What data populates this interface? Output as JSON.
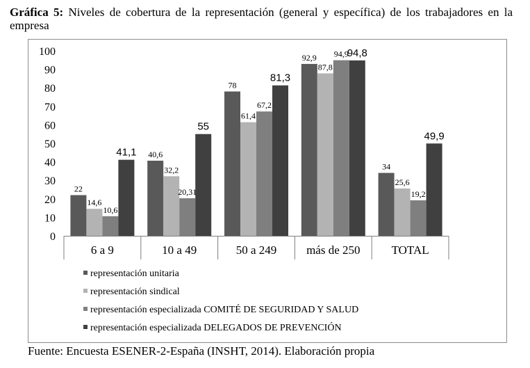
{
  "caption": {
    "label": "Gráfica 5:",
    "text": "Niveles de cobertura de la representación (general y específica) de los trabajadores en la empresa"
  },
  "source": "Fuente: Encuesta ESENER-2-España (INSHT, 2014). Elaboración propia",
  "chart_data": {
    "type": "bar",
    "categories": [
      "6 a 9",
      "10 a 49",
      "50 a 249",
      "más de 250",
      "TOTAL"
    ],
    "ylim": [
      0,
      100
    ],
    "yticks": [
      0,
      10,
      20,
      30,
      40,
      50,
      60,
      70,
      80,
      90,
      100
    ],
    "grid": false,
    "legend_position": "bottom",
    "series": [
      {
        "name": "representación unitaria",
        "color": "#595959",
        "values": [
          22,
          40.6,
          78,
          92.9,
          34
        ],
        "labels": [
          "22",
          "40,6",
          "78",
          "92,9",
          "34"
        ],
        "label_size": "small"
      },
      {
        "name": "representación sindical",
        "color": "#b3b3b3",
        "values": [
          14.6,
          32.2,
          61.4,
          87.8,
          25.6
        ],
        "labels": [
          "14,6",
          "32,2",
          "61,4",
          "87,8",
          "25,6"
        ],
        "label_size": "small"
      },
      {
        "name": "representación especializada COMITÉ DE SEGURIDAD Y SALUD",
        "color": "#7f7f7f",
        "values": [
          10.6,
          20.31,
          67.2,
          94.9,
          19.2
        ],
        "labels": [
          "10,6",
          "20,31",
          "67,2",
          "94,9",
          "19,2"
        ],
        "label_size": "small"
      },
      {
        "name": "representación especializada DELEGADOS DE PREVENCIÓN",
        "color": "#404040",
        "values": [
          41.1,
          55,
          81.3,
          94.8,
          49.9
        ],
        "labels": [
          "41,1",
          "55",
          "81,3",
          "94,8",
          "49,9"
        ],
        "label_size": "large"
      }
    ]
  }
}
